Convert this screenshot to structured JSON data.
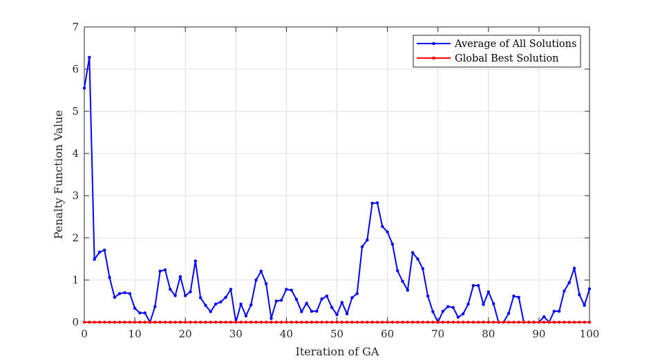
{
  "chart_data": {
    "type": "line",
    "title": "",
    "xlabel": "Iteration of GA",
    "ylabel": "Penalty Function Value",
    "xlim": [
      0,
      100
    ],
    "ylim": [
      0,
      7
    ],
    "xticks": [
      "0",
      "10",
      "20",
      "30",
      "40",
      "50",
      "60",
      "70",
      "80",
      "90",
      "100"
    ],
    "yticks": [
      "0",
      "1",
      "2",
      "3",
      "4",
      "5",
      "6",
      "7"
    ],
    "grid": true,
    "legend_position": "top-right",
    "x": [
      0,
      1,
      2,
      3,
      4,
      5,
      6,
      7,
      8,
      9,
      10,
      11,
      12,
      13,
      14,
      15,
      16,
      17,
      18,
      19,
      20,
      21,
      22,
      23,
      24,
      25,
      26,
      27,
      28,
      29,
      30,
      31,
      32,
      33,
      34,
      35,
      36,
      37,
      38,
      39,
      40,
      41,
      42,
      43,
      44,
      45,
      46,
      47,
      48,
      49,
      50,
      51,
      52,
      53,
      54,
      55,
      56,
      57,
      58,
      59,
      60,
      61,
      62,
      63,
      64,
      65,
      66,
      67,
      68,
      69,
      70,
      71,
      72,
      73,
      74,
      75,
      76,
      77,
      78,
      79,
      80,
      81,
      82,
      83,
      84,
      85,
      86,
      87,
      88,
      89,
      90,
      91,
      92,
      93,
      94,
      95,
      96,
      97,
      98,
      99,
      100
    ],
    "series": [
      {
        "name": "Average of All Solutions",
        "color": "#0000FF",
        "values": [
          5.55,
          6.28,
          1.49,
          1.66,
          1.71,
          1.06,
          0.59,
          0.68,
          0.7,
          0.68,
          0.33,
          0.22,
          0.22,
          0.0,
          0.37,
          1.21,
          1.24,
          0.78,
          0.63,
          1.08,
          0.63,
          0.72,
          1.45,
          0.58,
          0.4,
          0.25,
          0.43,
          0.48,
          0.59,
          0.78,
          0.0,
          0.43,
          0.15,
          0.41,
          1.0,
          1.21,
          0.91,
          0.09,
          0.5,
          0.52,
          0.78,
          0.76,
          0.54,
          0.25,
          0.45,
          0.26,
          0.26,
          0.55,
          0.62,
          0.35,
          0.18,
          0.47,
          0.2,
          0.58,
          0.68,
          1.79,
          1.95,
          2.82,
          2.83,
          2.27,
          2.14,
          1.85,
          1.22,
          0.97,
          0.76,
          1.65,
          1.5,
          1.27,
          0.62,
          0.25,
          0.0,
          0.26,
          0.37,
          0.35,
          0.12,
          0.2,
          0.43,
          0.87,
          0.87,
          0.42,
          0.72,
          0.44,
          0.0,
          0.0,
          0.21,
          0.62,
          0.59,
          0.0,
          0.0,
          0.0,
          0.0,
          0.13,
          0.0,
          0.26,
          0.26,
          0.74,
          0.94,
          1.28,
          0.65,
          0.4,
          0.79
        ]
      },
      {
        "name": "Global Best Solution",
        "color": "#FF0000",
        "values": [
          0,
          0,
          0,
          0,
          0,
          0,
          0,
          0,
          0,
          0,
          0,
          0,
          0,
          0,
          0,
          0,
          0,
          0,
          0,
          0,
          0,
          0,
          0,
          0,
          0,
          0,
          0,
          0,
          0,
          0,
          0,
          0,
          0,
          0,
          0,
          0,
          0,
          0,
          0,
          0,
          0,
          0,
          0,
          0,
          0,
          0,
          0,
          0,
          0,
          0,
          0,
          0,
          0,
          0,
          0,
          0,
          0,
          0,
          0,
          0,
          0,
          0,
          0,
          0,
          0,
          0,
          0,
          0,
          0,
          0,
          0,
          0,
          0,
          0,
          0,
          0,
          0,
          0,
          0,
          0,
          0,
          0,
          0,
          0,
          0,
          0,
          0,
          0,
          0,
          0,
          0,
          0,
          0,
          0,
          0,
          0,
          0,
          0,
          0,
          0,
          0
        ]
      }
    ]
  }
}
